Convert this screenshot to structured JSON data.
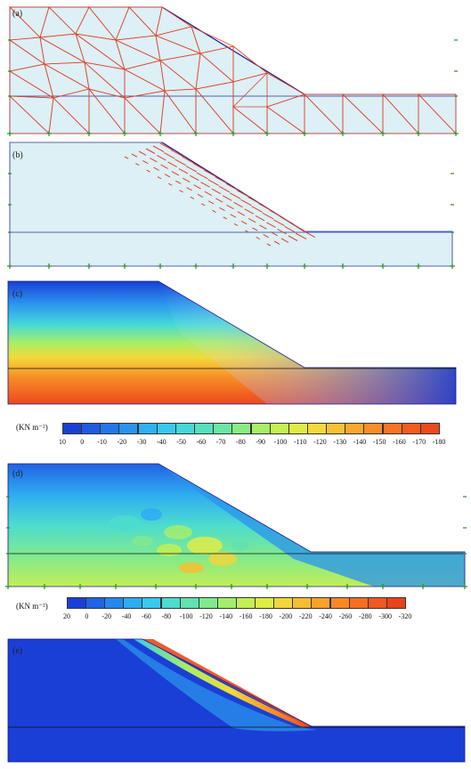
{
  "panels": {
    "a": {
      "label": "(a)"
    },
    "b": {
      "label": "(b)"
    },
    "c": {
      "label": "(c)"
    },
    "d": {
      "label": "(d)"
    },
    "e": {
      "label": "(e)"
    }
  },
  "colorbar_c": {
    "unit_label": "(KN m⁻²)",
    "ticks": [
      "10",
      "0",
      "-10",
      "-20",
      "-30",
      "-40",
      "-50",
      "-60",
      "-70",
      "-80",
      "-90",
      "-100",
      "-110",
      "-120",
      "-130",
      "-140",
      "-150",
      "-160",
      "-170",
      "-180"
    ],
    "colors": [
      "#1a3fd6",
      "#1f5be0",
      "#2277e8",
      "#2a93ee",
      "#2fb0f2",
      "#37c8ee",
      "#45d8da",
      "#55e0be",
      "#6be6a0",
      "#88eb82",
      "#a8ee66",
      "#c6ef52",
      "#e0ec44",
      "#f2da3a",
      "#f7c233",
      "#f8a82c",
      "#f88e27",
      "#f67424",
      "#f25c20",
      "#ec481c"
    ]
  },
  "colorbar_d": {
    "unit_label": "(KN m⁻²)",
    "ticks": [
      "20",
      "0",
      "-20",
      "-40",
      "-60",
      "-80",
      "-100",
      "-120",
      "-140",
      "-160",
      "-180",
      "-200",
      "-220",
      "-240",
      "-260",
      "-280",
      "-300",
      "-320"
    ],
    "colors": [
      "#1a3fd6",
      "#2063e3",
      "#2587ec",
      "#2fabf2",
      "#3ac9ee",
      "#4cdccf",
      "#62e2b0",
      "#80e98e",
      "#a2ee6c",
      "#c3ef55",
      "#dfec46",
      "#f1d63b",
      "#f7bd32",
      "#f8a22b",
      "#f78826",
      "#f46f22",
      "#ef581e",
      "#e9431b"
    ]
  }
}
